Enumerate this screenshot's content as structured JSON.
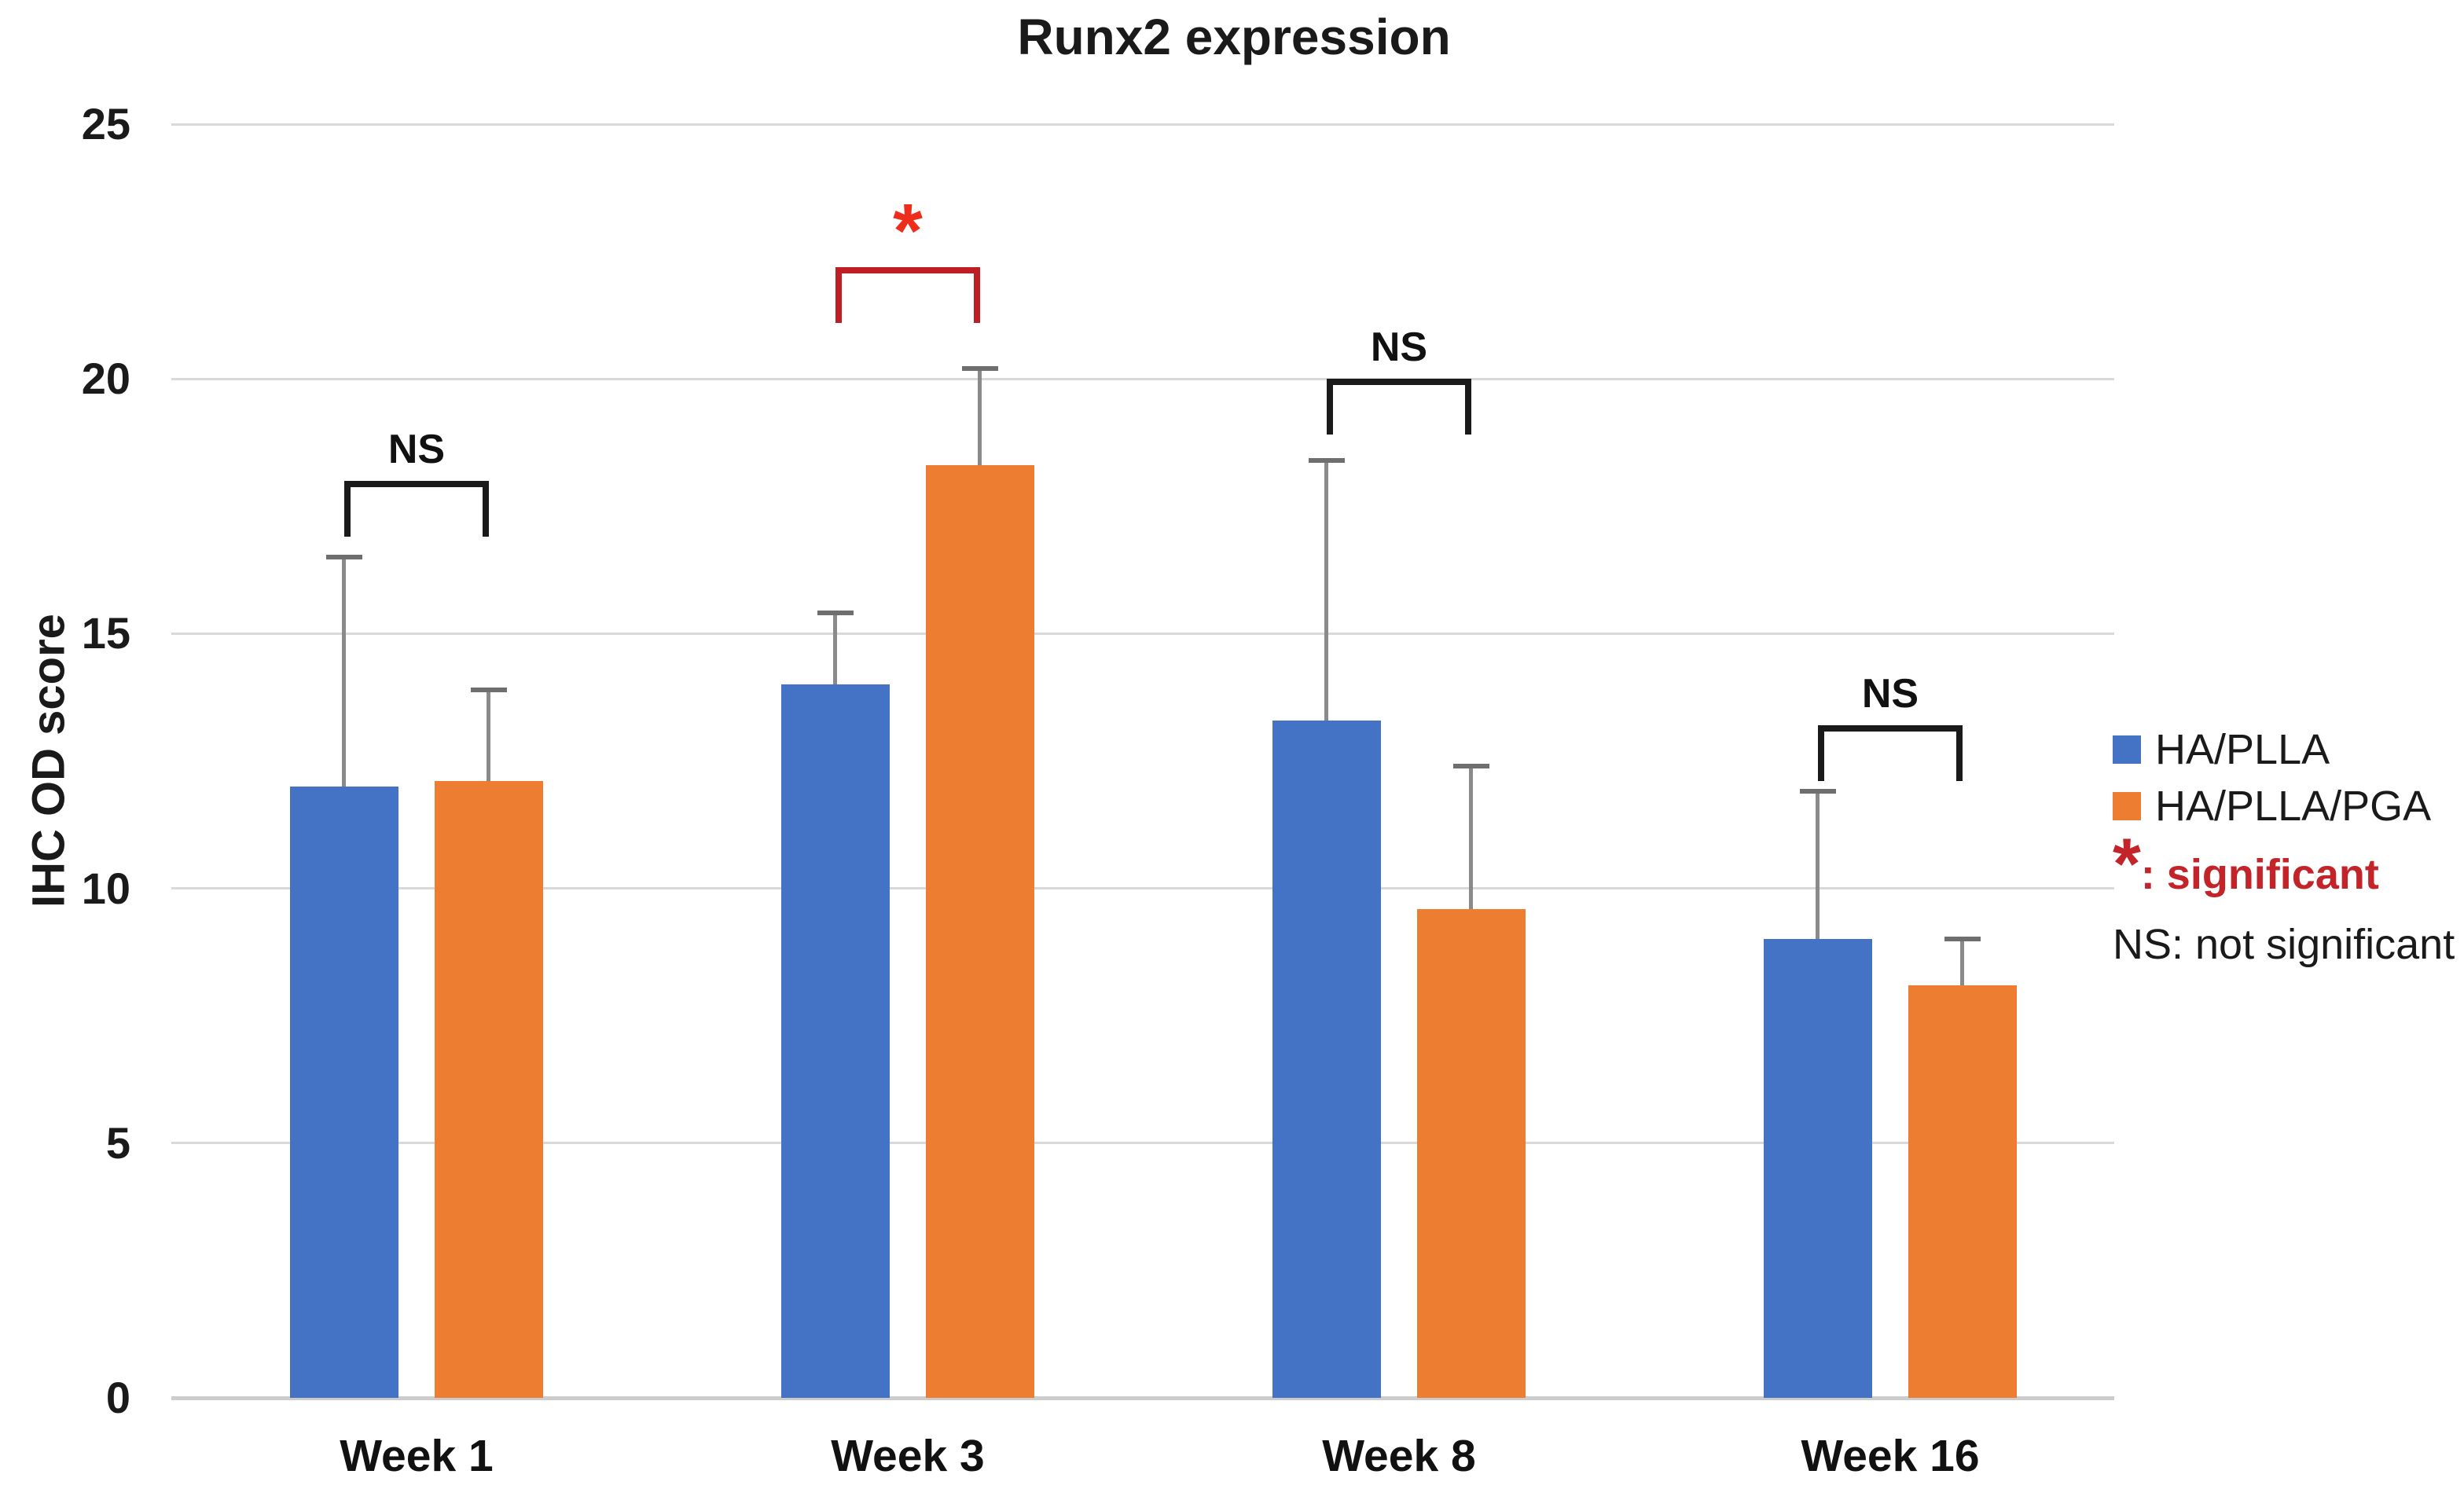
{
  "title": "Runx2 expression",
  "y_axis": {
    "label": "IHC OD score"
  },
  "legend": {
    "items": [
      {
        "label": "HA/PLLA",
        "color": "#4472C4"
      },
      {
        "label": "HA/PLLA/PGA",
        "color": "#ED7D31"
      }
    ],
    "significant_symbol": "*",
    "significant_text": ": significant",
    "not_significant_text": "NS: not significant"
  },
  "chart_data": {
    "type": "bar",
    "title": "Runx2 expression",
    "xlabel": "",
    "ylabel": "IHC OD score",
    "ylim": [
      0,
      25
    ],
    "yticks": [
      0,
      5,
      10,
      15,
      20,
      25
    ],
    "grid": true,
    "legend_position": "right",
    "categories": [
      "Week 1",
      "Week 3",
      "Week 8",
      "Week 16"
    ],
    "series": [
      {
        "name": "HA/PLLA",
        "color": "#4472C4",
        "values": [
          12.0,
          14.0,
          13.3,
          9.0
        ],
        "error_plus": [
          4.5,
          1.4,
          5.1,
          2.9
        ]
      },
      {
        "name": "HA/PLLA/PGA",
        "color": "#ED7D31",
        "values": [
          12.1,
          18.3,
          9.6,
          8.1
        ],
        "error_plus": [
          1.8,
          1.9,
          2.8,
          0.9
        ]
      }
    ],
    "annotations": [
      {
        "category": "Week 1",
        "label": "NS",
        "significant": false,
        "bracket_top": 18.0
      },
      {
        "category": "Week 3",
        "label": "*",
        "significant": true,
        "bracket_top": 22.2
      },
      {
        "category": "Week 8",
        "label": "NS",
        "significant": false,
        "bracket_top": 20.0
      },
      {
        "category": "Week 16",
        "label": "NS",
        "significant": false,
        "bracket_top": 13.2
      }
    ],
    "annotation_colors": {
      "significant_bracket": "#bf1f24",
      "significant_star": "#ee2d1b",
      "ns_bracket": "#1a1a1a"
    }
  }
}
